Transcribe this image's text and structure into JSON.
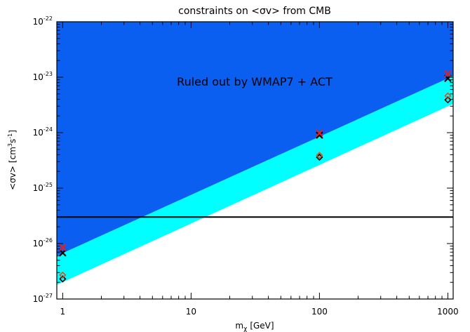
{
  "chart_data": {
    "type": "scatter",
    "title": "constraints on <σv> from CMB",
    "xlabel": "m",
    "xlabel_sub": "χ",
    "xlabel_unit": "[GeV]",
    "ylabel_main": "<σv>",
    "ylabel_unit_open": "[cm",
    "ylabel_unit_sup1": "3",
    "ylabel_unit_mid": "s",
    "ylabel_unit_sup2": "-1",
    "ylabel_unit_close": "]",
    "x_scale": "log",
    "y_scale": "log",
    "xlim": [
      0.9,
      1100
    ],
    "ylim": [
      1e-27,
      1e-22
    ],
    "x_ticks": [
      {
        "value": 1,
        "label": "1"
      },
      {
        "value": 10,
        "label": "10"
      },
      {
        "value": 100,
        "label": "100"
      },
      {
        "value": 1000,
        "label": "1000"
      }
    ],
    "y_ticks": [
      {
        "value": 1e-27,
        "base": "10",
        "exp": "-27"
      },
      {
        "value": 1e-26,
        "base": "10",
        "exp": "-26"
      },
      {
        "value": 1e-25,
        "base": "10",
        "exp": "-25"
      },
      {
        "value": 1e-24,
        "base": "10",
        "exp": "-24"
      },
      {
        "value": 1e-23,
        "base": "10",
        "exp": "-23"
      },
      {
        "value": 1e-22,
        "base": "10",
        "exp": "-22"
      }
    ],
    "annotation": "Ruled out by WMAP7 + ACT",
    "regions": [
      {
        "id": "ruled-out",
        "color": "#0a5ff0",
        "lower_boundary": [
          [
            0.9,
            6e-27
          ],
          [
            1100,
            1.05e-23
          ]
        ],
        "upper": 1e-22
      },
      {
        "id": "band",
        "color": "#00ffff",
        "lower_boundary": [
          [
            0.9,
            1.8e-27
          ],
          [
            1100,
            3.3e-24
          ]
        ],
        "upper_boundary": [
          [
            0.9,
            6e-27
          ],
          [
            1100,
            1.05e-23
          ]
        ]
      }
    ],
    "hline": {
      "y": 3e-26,
      "color": "#000000"
    },
    "series": [
      {
        "marker": "x",
        "color": "#000000",
        "x": [
          1,
          100,
          1000
        ],
        "y": [
          6.8e-27,
          9e-25,
          9.5e-24
        ]
      },
      {
        "marker": "x",
        "color": "#e02020",
        "x": [
          1,
          100,
          1000
        ],
        "y": [
          8.5e-27,
          9.8e-25,
          1.15e-23
        ]
      },
      {
        "marker": "diamond",
        "color": "#000000",
        "x": [
          1,
          100,
          1000
        ],
        "y": [
          2.3e-27,
          3.6e-25,
          3.9e-24
        ]
      },
      {
        "marker": "diamond",
        "color": "#e05020",
        "x": [
          1,
          100,
          1000
        ],
        "y": [
          2.7e-27,
          3.9e-25,
          4.6e-24
        ]
      }
    ],
    "grid": false,
    "legend": "none"
  }
}
